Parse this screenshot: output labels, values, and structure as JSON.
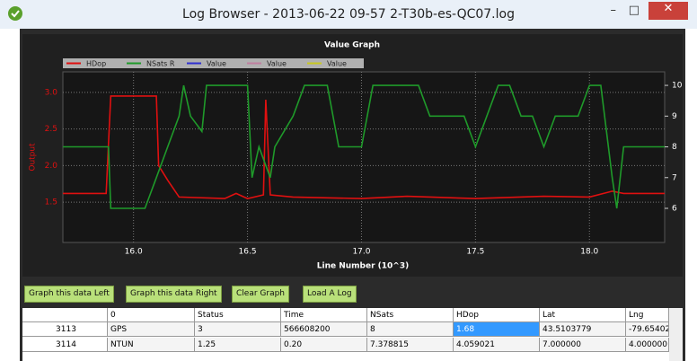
{
  "window": {
    "title": "Log Browser - 2013-06-22 09-57 2-T30b-es-QC07.log"
  },
  "chart_data": {
    "type": "line",
    "title": "Value Graph",
    "x_label": "Line Number (10^3)",
    "y_label": "Output",
    "grid": true,
    "xlim": [
      15.69,
      18.33
    ],
    "xticks": [
      {
        "value": 16,
        "label": "16.0"
      },
      16.5,
      {
        "value": 17,
        "label": "17.0"
      },
      17.5,
      {
        "value": 18,
        "label": "18.0"
      }
    ],
    "ylim": [
      0.95,
      3.28
    ],
    "yticks": [
      1.5,
      {
        "value": 2,
        "label": "2.0"
      },
      2.5,
      {
        "value": 3,
        "label": "3.0"
      }
    ],
    "y2lim": [
      4.89,
      10.44
    ],
    "y2ticks": [
      6,
      7,
      8,
      9,
      10
    ],
    "series": [
      {
        "name": "HDop",
        "color": "#e01010",
        "x": [
          15.69,
          15.88,
          15.9,
          16.1,
          16.11,
          16.15,
          16.2,
          16.4,
          16.45,
          16.5,
          16.57,
          16.58,
          16.6,
          16.7,
          17.0,
          17.2,
          17.5,
          17.8,
          18.0,
          18.1,
          18.15,
          18.33
        ],
        "values": [
          1.62,
          1.62,
          2.95,
          2.95,
          2.0,
          1.8,
          1.57,
          1.55,
          1.62,
          1.55,
          1.6,
          2.9,
          1.6,
          1.57,
          1.55,
          1.58,
          1.55,
          1.58,
          1.57,
          1.65,
          1.62,
          1.62
        ]
      },
      {
        "name": "NSats R",
        "color": "#1f9a2a",
        "axis": "y2",
        "x": [
          15.69,
          15.89,
          15.9,
          16.05,
          16.1,
          16.15,
          16.2,
          16.22,
          16.25,
          16.3,
          16.32,
          16.5,
          16.52,
          16.55,
          16.6,
          16.62,
          16.7,
          16.75,
          16.85,
          16.9,
          17.0,
          17.05,
          17.25,
          17.3,
          17.45,
          17.5,
          17.55,
          17.6,
          17.65,
          17.7,
          17.75,
          17.8,
          17.85,
          17.95,
          18.0,
          18.05,
          18.1,
          18.12,
          18.15,
          18.33
        ],
        "values": [
          8,
          8,
          6,
          6,
          7,
          8,
          9,
          10,
          9,
          8.5,
          10,
          10,
          7,
          8,
          7,
          8,
          9,
          10,
          10,
          8,
          8,
          10,
          10,
          9,
          9,
          8,
          9,
          10,
          10,
          9,
          9,
          8,
          9,
          9,
          10,
          10,
          7,
          6,
          8,
          8
        ]
      },
      {
        "name": "Value",
        "color": "#3030d0",
        "axis": "y2",
        "x": [],
        "values": []
      },
      {
        "name": "Value",
        "color": "#c080a0",
        "axis": "y2",
        "x": [],
        "values": []
      },
      {
        "name": "Value",
        "color": "#c8c820",
        "axis": "y2",
        "x": [],
        "values": []
      }
    ]
  },
  "buttons": [
    "Graph this data Left",
    "Graph this data Right",
    "Clear Graph",
    "Load A Log"
  ],
  "table": {
    "columns": [
      "",
      "0",
      "Status",
      "Time",
      "NSats",
      "HDop",
      "Lat",
      "Lng"
    ],
    "rows": [
      [
        "3113",
        "GPS",
        "3",
        "566608200",
        "8",
        "1.68",
        "43.5103779",
        "-79.65402"
      ],
      [
        "3114",
        "NTUN",
        "1.25",
        "0.20",
        "7.378815",
        "4.059021",
        "7.000000",
        "4.000000"
      ]
    ]
  }
}
